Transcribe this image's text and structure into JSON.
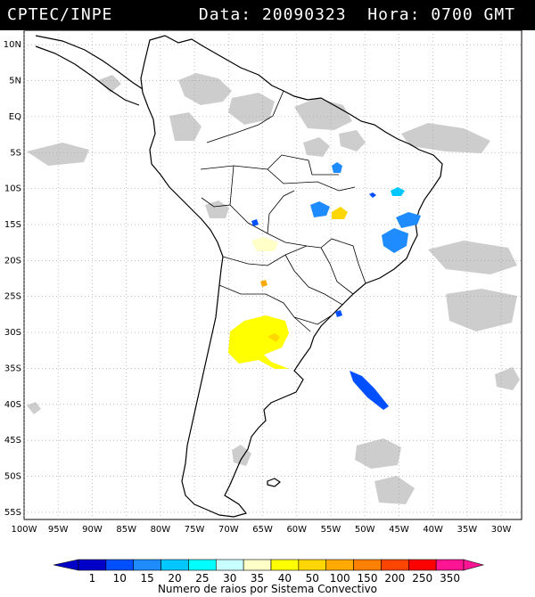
{
  "header": {
    "left": "CPTEC/INPE",
    "right": "Data: 20090323  Hora: 0700 GMT"
  },
  "map": {
    "lat_labels": [
      "10N",
      "5N",
      "EQ",
      "5S",
      "10S",
      "15S",
      "20S",
      "25S",
      "30S",
      "35S",
      "40S",
      "45S",
      "50S",
      "55S"
    ],
    "lat_values": [
      10,
      5,
      0,
      -5,
      -10,
      -15,
      -20,
      -25,
      -30,
      -35,
      -40,
      -45,
      -50,
      -55
    ],
    "lon_labels": [
      "100W",
      "95W",
      "90W",
      "85W",
      "80W",
      "75W",
      "70W",
      "65W",
      "60W",
      "55W",
      "50W",
      "45W",
      "40W",
      "35W",
      "30W"
    ],
    "lon_values": [
      -100,
      -95,
      -90,
      -85,
      -80,
      -75,
      -70,
      -65,
      -60,
      -55,
      -50,
      -45,
      -40,
      -35,
      -30
    ],
    "extent": {
      "lon_min": -100,
      "lon_max": -27,
      "lat_min": -56,
      "lat_max": 12
    }
  },
  "colorbar": {
    "labels": [
      "1",
      "10",
      "15",
      "20",
      "25",
      "30",
      "35",
      "40",
      "50",
      "100",
      "150",
      "200",
      "250",
      "350"
    ],
    "colors": [
      "#0000c8",
      "#0050ff",
      "#1e8cff",
      "#00c8ff",
      "#00ffff",
      "#c8ffff",
      "#ffffc8",
      "#ffff00",
      "#ffd700",
      "#ffaa00",
      "#ff7f00",
      "#ff4500",
      "#ff0000",
      "#ff1493"
    ],
    "caption": "Numero de raios por Sistema Convectivo"
  },
  "colors": {
    "cloud": "#c8c8c8",
    "coast": "#000000",
    "grid": "#999999"
  }
}
